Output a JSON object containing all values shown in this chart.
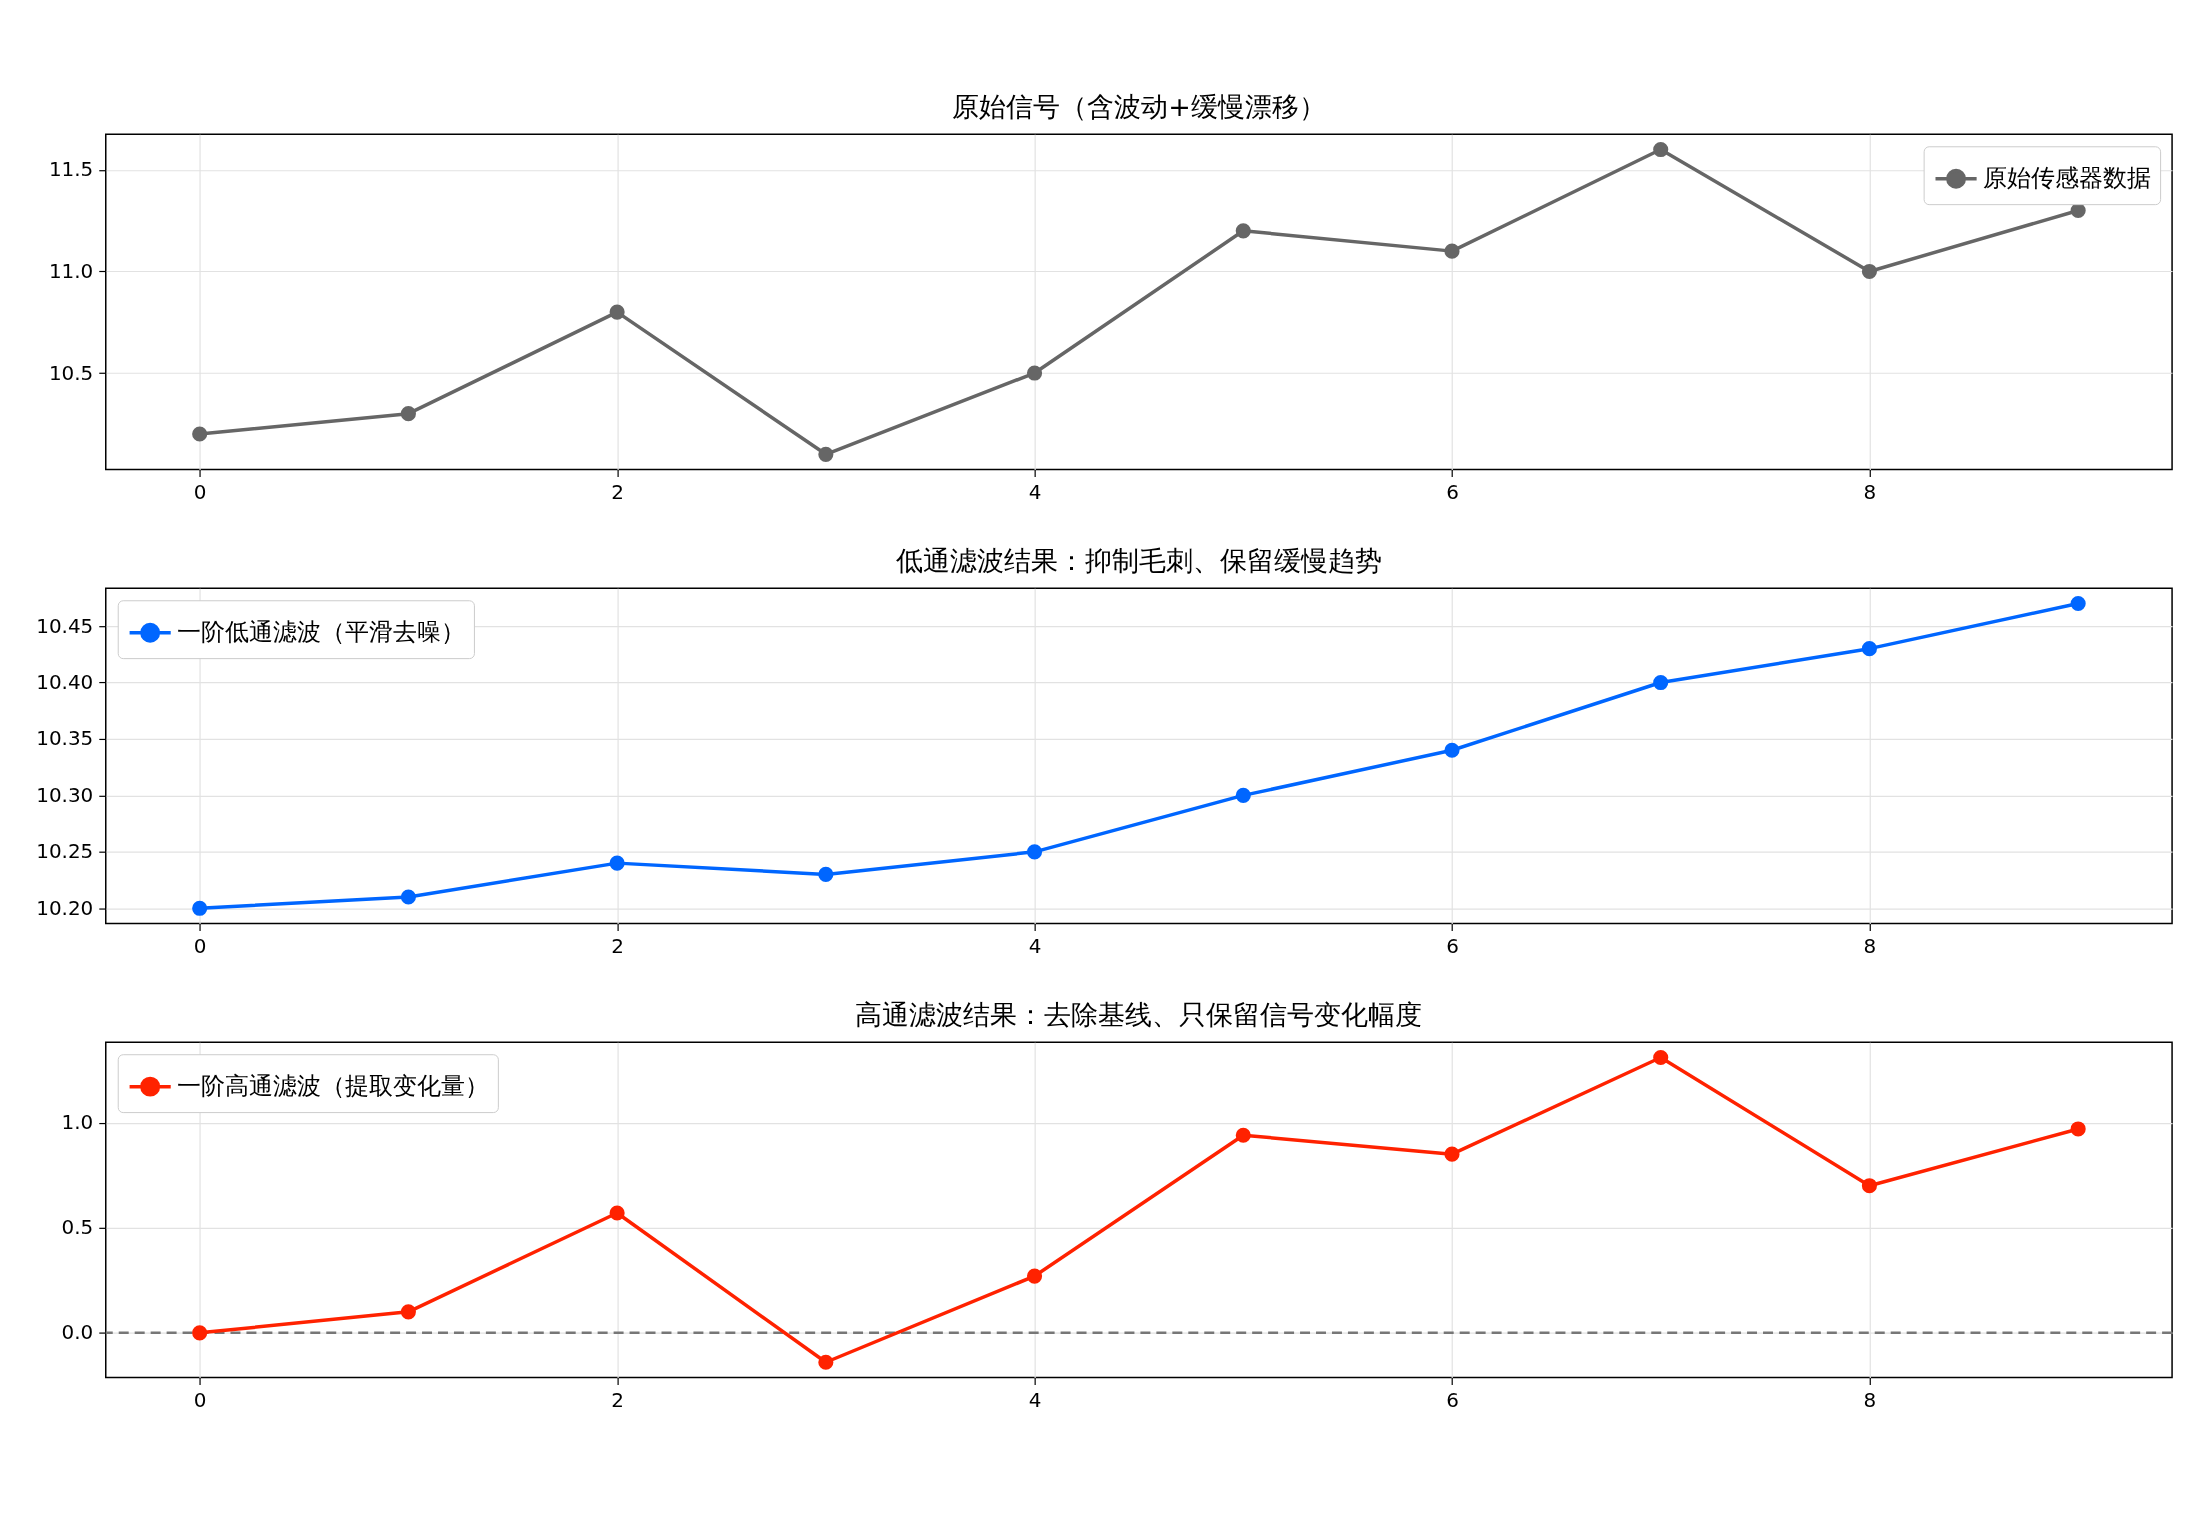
{
  "chart_data": [
    {
      "type": "line",
      "title": "原始信号（含波动+缓慢漂移）",
      "x": [
        0,
        1,
        2,
        3,
        4,
        5,
        6,
        7,
        8,
        9
      ],
      "series": [
        {
          "name": "原始传感器数据",
          "color": "#666666",
          "values": [
            10.2,
            10.3,
            10.8,
            10.1,
            10.5,
            11.2,
            11.1,
            11.6,
            11.0,
            11.3
          ]
        }
      ],
      "xlim": [
        -0.45,
        9.45
      ],
      "xticks": [
        0,
        2,
        4,
        6,
        8
      ],
      "ylim": [
        10.025,
        11.675
      ],
      "yticks": [
        10.5,
        {
          "value": 11,
          "label": "11.0"
        },
        11.5
      ],
      "grid": true,
      "legend": "top right",
      "marker": "circle"
    },
    {
      "type": "line",
      "title": "低通滤波结果：抑制毛刺、保留缓慢趋势",
      "x": [
        0,
        1,
        2,
        3,
        4,
        5,
        6,
        7,
        8,
        9
      ],
      "series": [
        {
          "name": "一阶低通滤波（平滑去噪）",
          "color": "#0066ff",
          "values": [
            10.2,
            10.21,
            10.24,
            10.23,
            10.25,
            10.3,
            10.34,
            10.4,
            10.43,
            10.47
          ]
        }
      ],
      "xlim": [
        -0.45,
        9.45
      ],
      "xticks": [
        0,
        2,
        4,
        6,
        8
      ],
      "ylim": [
        10.1865,
        10.4835
      ],
      "yticks": [
        {
          "value": 10.2,
          "label": "10.20"
        },
        10.25,
        {
          "value": 10.3,
          "label": "10.30"
        },
        10.35,
        {
          "value": 10.4,
          "label": "10.40"
        },
        10.45
      ],
      "grid": true,
      "legend": "top left",
      "marker": "circle"
    },
    {
      "type": "line",
      "title": "高通滤波结果：去除基线、只保留信号变化幅度",
      "x": [
        0,
        1,
        2,
        3,
        4,
        5,
        6,
        7,
        8,
        9
      ],
      "series": [
        {
          "name": "一阶高通滤波（提取变化量）",
          "color": "#ff2200",
          "values": [
            0,
            0.1,
            0.57,
            -0.14,
            0.27,
            0.94,
            0.85,
            1.31,
            0.7,
            0.97
          ]
        }
      ],
      "xlim": [
        -0.45,
        9.45
      ],
      "xticks": [
        0,
        2,
        4,
        6,
        8
      ],
      "ylim": [
        -0.2125,
        1.3825
      ],
      "yticks": [
        {
          "value": 0,
          "label": "0.0"
        },
        0.5,
        {
          "value": 1,
          "label": "1.0"
        }
      ],
      "grid": true,
      "legend": "top left",
      "marker": "circle",
      "ref_lines": [
        {
          "axis": "y",
          "value": 0,
          "color": "#777777",
          "line_style": "dashed"
        }
      ]
    }
  ]
}
